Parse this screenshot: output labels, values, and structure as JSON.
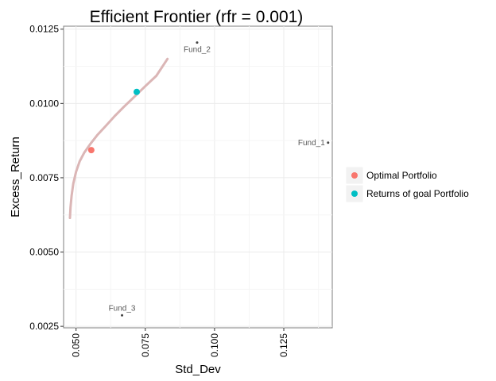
{
  "chart_data": {
    "type": "scatter",
    "title": "Efficient Frontier (rfr = 0.001)",
    "xlabel": "Std_Dev",
    "ylabel": "Excess_Return",
    "xlim": [
      0.0455,
      0.1425
    ],
    "ylim": [
      0.00245,
      0.0126
    ],
    "x_ticks": [
      0.05,
      0.075,
      0.1,
      0.125
    ],
    "x_tick_labels": [
      "0.050",
      "0.075",
      "0.100",
      "0.125"
    ],
    "y_ticks": [
      0.0025,
      0.005,
      0.0075,
      0.01,
      0.0125
    ],
    "y_tick_labels": [
      "0.0025",
      "0.0050",
      "0.0075",
      "0.0100",
      "0.0125"
    ],
    "grid": true,
    "frontier": {
      "color": "#dbb6b6",
      "x": [
        0.0478,
        0.048,
        0.0484,
        0.049,
        0.05,
        0.0513,
        0.053,
        0.0551,
        0.0576,
        0.0605,
        0.0637,
        0.0672,
        0.071,
        0.075,
        0.079,
        0.083
      ],
      "y": [
        0.00615,
        0.0065,
        0.0069,
        0.0073,
        0.0077,
        0.00805,
        0.00835,
        0.00863,
        0.00893,
        0.00922,
        0.00955,
        0.00988,
        0.01022,
        0.01058,
        0.01093,
        0.0115
      ]
    },
    "funds": [
      {
        "name": "Fund_1",
        "x": 0.141,
        "y": 0.00868
      },
      {
        "name": "Fund_2",
        "x": 0.0937,
        "y": 0.01205
      },
      {
        "name": "Fund_3",
        "x": 0.0666,
        "y": 0.00287
      }
    ],
    "series": [
      {
        "name": "Optimal Portfolio",
        "color": "#f8766d",
        "x": [
          0.0555
        ],
        "y": [
          0.00843
        ]
      },
      {
        "name": "Returns of goal Portfolio",
        "color": "#00bfc4",
        "x": [
          0.0719
        ],
        "y": [
          0.01039
        ]
      }
    ],
    "legend_position": "right"
  }
}
